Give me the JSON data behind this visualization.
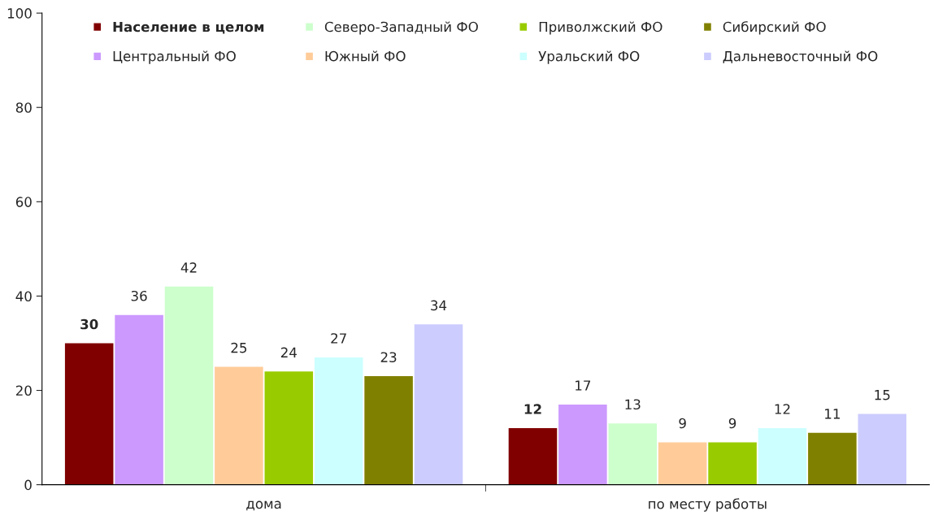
{
  "chart_data": {
    "type": "bar",
    "categories": [
      "дома",
      "по месту работы"
    ],
    "series": [
      {
        "name": "Население в целом",
        "color": "#800000",
        "values": [
          30,
          12
        ]
      },
      {
        "name": "Центральный ФО",
        "color": "#cc99ff",
        "values": [
          36,
          17
        ]
      },
      {
        "name": "Северо-Западный ФО",
        "color": "#ccffcc",
        "values": [
          42,
          13
        ]
      },
      {
        "name": "Южный ФО",
        "color": "#ffcc99",
        "values": [
          25,
          9
        ]
      },
      {
        "name": "Приволжский ФО",
        "color": "#99cc00",
        "values": [
          24,
          9
        ]
      },
      {
        "name": "Уральский ФО",
        "color": "#ccffff",
        "values": [
          27,
          12
        ]
      },
      {
        "name": "Сибирский ФО",
        "color": "#808000",
        "values": [
          23,
          11
        ]
      },
      {
        "name": "Дальневосточный ФО",
        "color": "#ccccff",
        "values": [
          34,
          15
        ]
      }
    ],
    "ylim": [
      0,
      100
    ],
    "yticks": [
      0,
      20,
      40,
      60,
      80,
      100
    ],
    "grid": false,
    "legend": "top",
    "data_labels": true
  }
}
